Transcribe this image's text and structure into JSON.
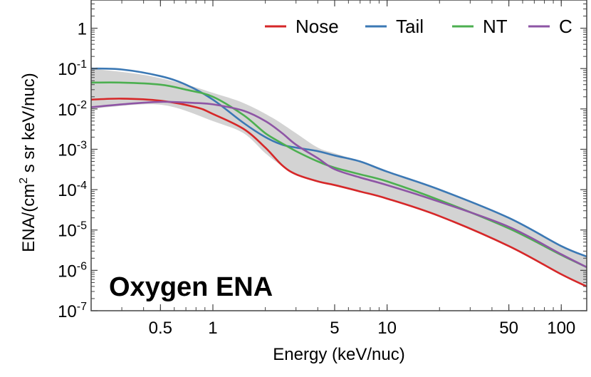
{
  "chart_data": {
    "type": "line",
    "xlabel": "Energy (keV/nuc)",
    "ylabel": "ENA/(cm² s sr keV/nuc)",
    "ylabel_parts": [
      "ENA/(cm",
      "2",
      " s sr keV/nuc)"
    ],
    "annotation": "Oxygen ENA",
    "xscale": "log",
    "yscale": "log",
    "xlim": [
      0.2,
      140
    ],
    "ylim": [
      1e-07,
      5
    ],
    "legend_position": "top-right",
    "grid": false,
    "x_ticks": [
      {
        "value": 0.5,
        "label": "0.5"
      },
      {
        "value": 1,
        "label": "1"
      },
      {
        "value": 5,
        "label": "5"
      },
      {
        "value": 10,
        "label": "10"
      },
      {
        "value": 50,
        "label": "50"
      },
      {
        "value": 100,
        "label": "100"
      }
    ],
    "y_ticks": [
      {
        "value": 1e-07,
        "base": "10",
        "exp": "-7"
      },
      {
        "value": 1e-06,
        "base": "10",
        "exp": "-6"
      },
      {
        "value": 1e-05,
        "base": "10",
        "exp": "-5"
      },
      {
        "value": 0.0001,
        "base": "10",
        "exp": "-4"
      },
      {
        "value": 0.001,
        "base": "10",
        "exp": "-3"
      },
      {
        "value": 0.01,
        "base": "10",
        "exp": "-2"
      },
      {
        "value": 0.1,
        "base": "10",
        "exp": "-1"
      },
      {
        "value": 1,
        "base": "1",
        "exp": ""
      }
    ],
    "band": {
      "color": "#d3d3d3",
      "upper": [
        [
          0.2,
          0.1
        ],
        [
          0.4,
          0.07
        ],
        [
          0.7,
          0.04
        ],
        [
          1.0,
          0.025
        ],
        [
          1.5,
          0.014
        ],
        [
          2.2,
          0.006
        ],
        [
          3.0,
          0.0025
        ],
        [
          4.0,
          0.0011
        ],
        [
          5.0,
          0.0008
        ],
        [
          7.0,
          0.0005
        ],
        [
          10.0,
          0.00028
        ],
        [
          20.0,
          0.0001
        ],
        [
          50.0,
          2e-05
        ],
        [
          100.0,
          4e-06
        ],
        [
          140.0,
          2.2e-06
        ]
      ],
      "lower": [
        [
          0.2,
          0.01
        ],
        [
          0.4,
          0.013
        ],
        [
          0.6,
          0.011
        ],
        [
          1.0,
          0.005
        ],
        [
          1.5,
          0.0025
        ],
        [
          2.0,
          0.0008
        ],
        [
          2.5,
          0.00038
        ],
        [
          3.0,
          0.00023
        ],
        [
          4.0,
          0.00016
        ],
        [
          5.0,
          0.00013
        ],
        [
          7.0,
          9e-05
        ],
        [
          10.0,
          6e-05
        ],
        [
          20.0,
          2.2e-05
        ],
        [
          50.0,
          4e-06
        ],
        [
          100.0,
          8e-07
        ],
        [
          140.0,
          4e-07
        ]
      ]
    },
    "series": [
      {
        "name": "Nose",
        "color": "#d62728",
        "points": [
          [
            0.2,
            0.017
          ],
          [
            0.3,
            0.018
          ],
          [
            0.5,
            0.016
          ],
          [
            0.8,
            0.011
          ],
          [
            1.0,
            0.0075
          ],
          [
            1.5,
            0.0032
          ],
          [
            2.0,
            0.0011
          ],
          [
            2.5,
            0.0004
          ],
          [
            3.0,
            0.00024
          ],
          [
            4.0,
            0.00016
          ],
          [
            5.0,
            0.00013
          ],
          [
            7.0,
            9e-05
          ],
          [
            10.0,
            6e-05
          ],
          [
            20.0,
            2.2e-05
          ],
          [
            50.0,
            4e-06
          ],
          [
            100.0,
            8e-07
          ],
          [
            140.0,
            4e-07
          ]
        ]
      },
      {
        "name": "Tail",
        "color": "#3b78b4",
        "points": [
          [
            0.2,
            0.1
          ],
          [
            0.3,
            0.095
          ],
          [
            0.5,
            0.065
          ],
          [
            0.7,
            0.04
          ],
          [
            1.0,
            0.017
          ],
          [
            1.5,
            0.0045
          ],
          [
            2.0,
            0.002
          ],
          [
            2.5,
            0.0013
          ],
          [
            3.0,
            0.0011
          ],
          [
            4.0,
            0.0009
          ],
          [
            5.0,
            0.0007
          ],
          [
            7.0,
            0.0005
          ],
          [
            10.0,
            0.00028
          ],
          [
            20.0,
            0.0001
          ],
          [
            50.0,
            2e-05
          ],
          [
            100.0,
            4e-06
          ],
          [
            140.0,
            2.2e-06
          ]
        ]
      },
      {
        "name": "NT",
        "color": "#4caf50",
        "points": [
          [
            0.2,
            0.045
          ],
          [
            0.3,
            0.045
          ],
          [
            0.5,
            0.04
          ],
          [
            0.7,
            0.03
          ],
          [
            1.0,
            0.02
          ],
          [
            1.5,
            0.007
          ],
          [
            2.0,
            0.0025
          ],
          [
            2.5,
            0.0014
          ],
          [
            3.0,
            0.0009
          ],
          [
            4.0,
            0.0005
          ],
          [
            5.0,
            0.00035
          ],
          [
            7.0,
            0.00024
          ],
          [
            10.0,
            0.00016
          ],
          [
            20.0,
            5.5e-05
          ],
          [
            50.0,
            1.1e-05
          ],
          [
            100.0,
            2.4e-06
          ],
          [
            140.0,
            1.2e-06
          ]
        ]
      },
      {
        "name": "C",
        "color": "#8e55a5",
        "points": [
          [
            0.2,
            0.011
          ],
          [
            0.3,
            0.013
          ],
          [
            0.5,
            0.015
          ],
          [
            0.8,
            0.014
          ],
          [
            1.0,
            0.013
          ],
          [
            1.5,
            0.009
          ],
          [
            2.0,
            0.005
          ],
          [
            2.5,
            0.0025
          ],
          [
            3.0,
            0.0013
          ],
          [
            4.0,
            0.0006
          ],
          [
            5.0,
            0.00032
          ],
          [
            7.0,
            0.0002
          ],
          [
            10.0,
            0.00013
          ],
          [
            20.0,
            5e-05
          ],
          [
            50.0,
            1.2e-05
          ],
          [
            100.0,
            2.5e-06
          ],
          [
            140.0,
            1.2e-06
          ]
        ]
      }
    ]
  }
}
